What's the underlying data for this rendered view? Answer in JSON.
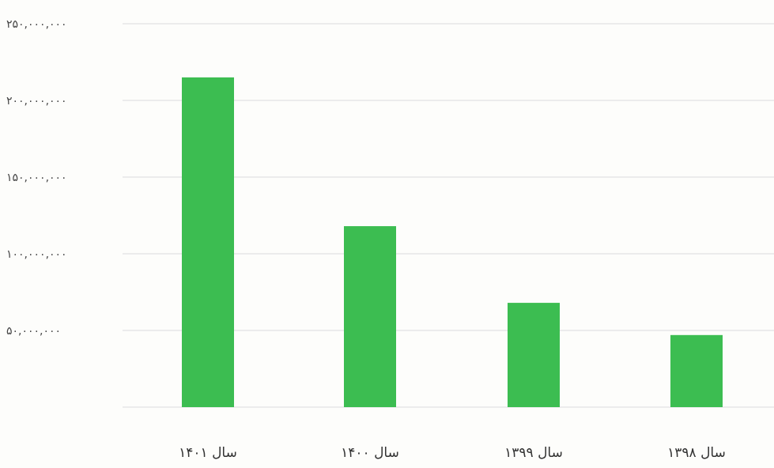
{
  "chart_data": {
    "type": "bar",
    "categories": [
      "سال ۱۴۰۱",
      "سال ۱۴۰۰",
      "سال ۱۳۹۹",
      "سال ۱۳۹۸"
    ],
    "values": [
      215000000,
      118000000,
      68000000,
      47000000
    ],
    "y_ticks": [
      "۵۰,۰۰۰,۰۰۰",
      "۱۰۰,۰۰۰,۰۰۰",
      "۱۵۰,۰۰۰,۰۰۰",
      "۲۰۰,۰۰۰,۰۰۰",
      "۲۵۰,۰۰۰,۰۰۰"
    ],
    "y_tick_values": [
      50000000,
      100000000,
      150000000,
      200000000,
      250000000
    ],
    "ylim": [
      0,
      250000000
    ],
    "grid": true,
    "bar_color": "#3cbd51",
    "grid_color": "#e3e3e3"
  }
}
